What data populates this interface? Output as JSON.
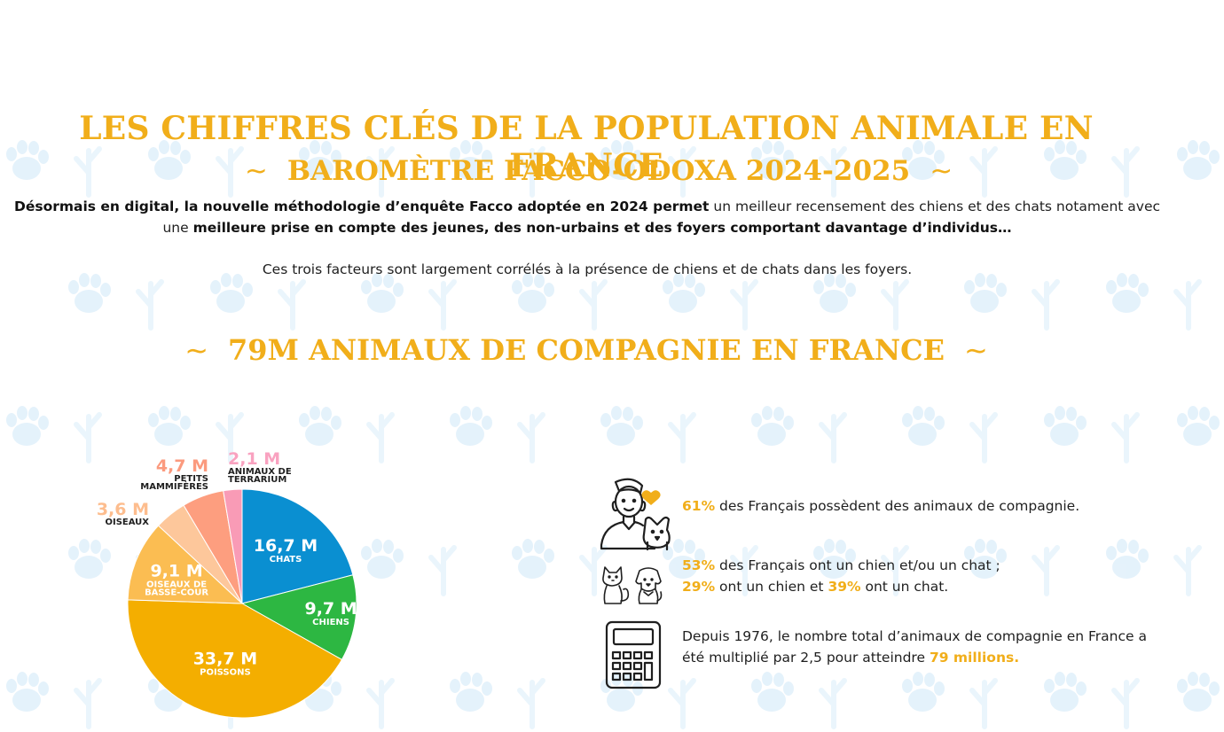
{
  "header": {
    "title": "LES CHIFFRES CLÉS DE LA POPULATION ANIMALE EN FRANCE",
    "subtitle": "BAROMÈTRE FACCO-ODOXA 2024-2025",
    "tilde": "~"
  },
  "intro": {
    "bold_1": "Désormais en digital, la nouvelle méthodologie d’enquête Facco adoptée en 2024 permet",
    "text_1": "un meilleur recensement des chiens et des chats notament avec une",
    "bold_2": "meilleure prise en compte des jeunes, des non-urbains et des foyers comportant davantage d’individus…",
    "paragraph_2": "Ces trois facteurs sont largement corrélés à la présence de chiens et de chats dans les foyers."
  },
  "section": {
    "title": "79M ANIMAUX DE COMPAGNIE EN FRANCE"
  },
  "chart_data": {
    "type": "pie",
    "unit": "M",
    "slices": [
      {
        "value_label": "16,7 M",
        "value": 16.7,
        "label": "CHATS",
        "color": "#0a8fd1"
      },
      {
        "value_label": "9,7 M",
        "value": 9.7,
        "label": "CHIENS",
        "color": "#2db742"
      },
      {
        "value_label": "33,7 M",
        "value": 33.7,
        "label": "POISSONS",
        "color": "#f4ae00"
      },
      {
        "value_label": "9,1 M",
        "value": 9.1,
        "label": "OISEAUX DE BASSE-COUR",
        "color": "#fbbd52"
      },
      {
        "value_label": "3,6 M",
        "value": 3.6,
        "label": "OISEAUX",
        "color": "#fdc79b"
      },
      {
        "value_label": "4,7 M",
        "value": 4.7,
        "label": "PETITS MAMMIFÈRES",
        "color": "#fd9e7f"
      },
      {
        "value_label": "2,1 M",
        "value": 2.1,
        "label": "ANIMAUX DE TERRARIUM",
        "color": "#f99bb6"
      }
    ]
  },
  "facts": [
    {
      "icon": "person-with-dog-icon",
      "highlight": "61%",
      "text": "des Français possèdent des animaux de compagnie."
    },
    {
      "icon": "cat-and-dog-icon",
      "highlight_1": "53%",
      "text_1": "des Français ont un chien et/ou un chat ;",
      "highlight_2": "29%",
      "text_2": "ont un chien et",
      "highlight_3": "39%",
      "text_3": "ont un chat."
    },
    {
      "icon": "calculator-icon",
      "text_1": "Depuis 1976, le nombre total d’animaux de compagnie en France a",
      "text_2": "été multiplié par 2,5 pour atteindre",
      "highlight": "79 millions."
    }
  ],
  "colors": {
    "accent": "#f1ae1a",
    "background_pattern": "#dceefa"
  }
}
